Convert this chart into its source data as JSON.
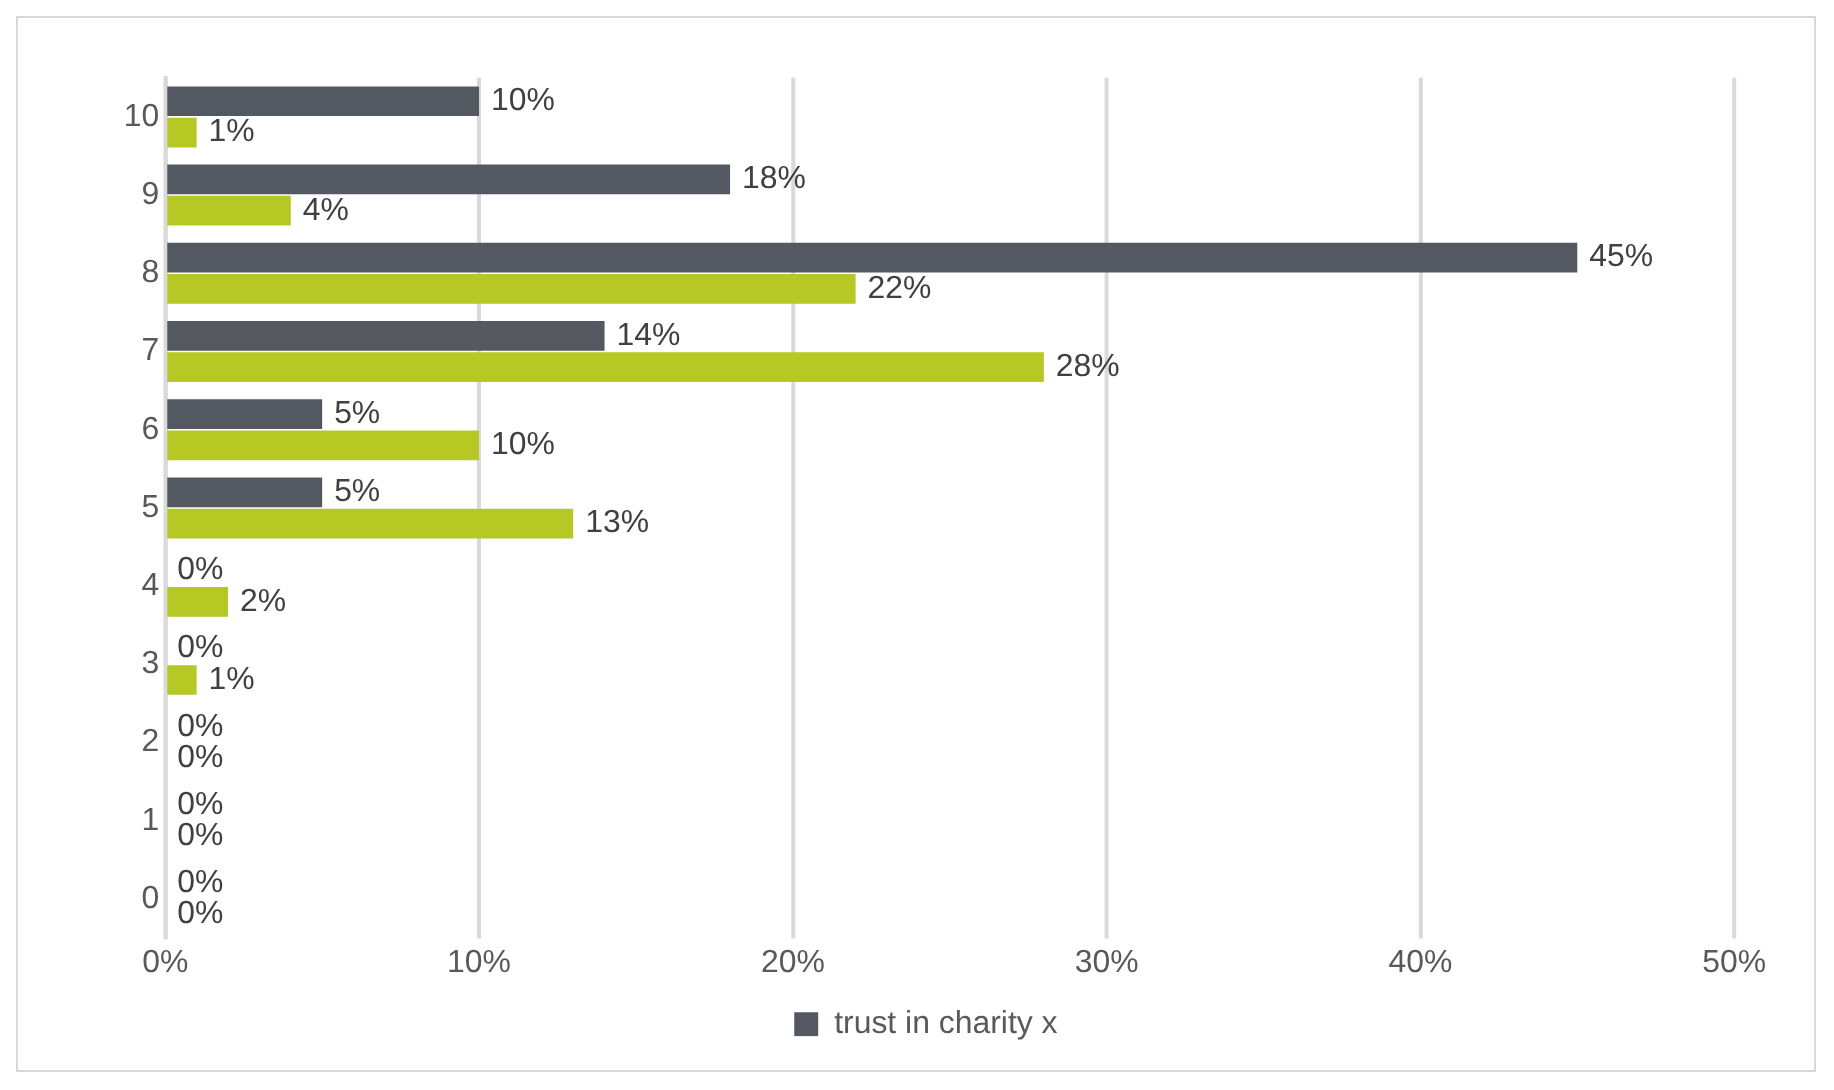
{
  "chart_data": {
    "type": "bar",
    "orientation": "horizontal",
    "categories": [
      "10",
      "9",
      "8",
      "7",
      "6",
      "5",
      "4",
      "3",
      "2",
      "1",
      "0"
    ],
    "series": [
      {
        "name": "trust in charity x",
        "color": "#545861",
        "values": [
          10,
          18,
          45,
          14,
          5,
          5,
          0,
          0,
          0,
          0,
          0
        ],
        "value_labels": [
          "10%",
          "18%",
          "45%",
          "14%",
          "5%",
          "5%",
          "0%",
          "0%",
          "0%",
          "0%",
          "0%"
        ]
      },
      {
        "color": "#b5c823",
        "values": [
          1,
          4,
          22,
          28,
          10,
          13,
          2,
          1,
          0,
          0,
          0
        ],
        "value_labels": [
          "1%",
          "4%",
          "22%",
          "28%",
          "10%",
          "13%",
          "2%",
          "1%",
          "0%",
          "0%",
          "0%"
        ]
      }
    ],
    "xlim": [
      0,
      50
    ],
    "xticks": [
      {
        "value": 0,
        "label": "0%"
      },
      {
        "value": 10,
        "label": "10%"
      },
      {
        "value": 20,
        "label": "20%"
      },
      {
        "value": 30,
        "label": "30%"
      },
      {
        "value": 40,
        "label": "40%"
      },
      {
        "value": 50,
        "label": "50%"
      }
    ],
    "grid": "x",
    "legend": "bottom"
  }
}
